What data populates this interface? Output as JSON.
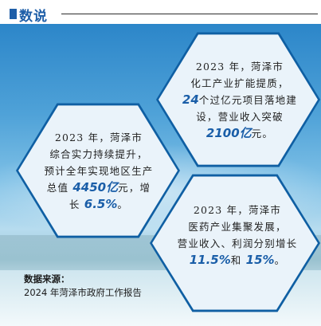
{
  "header": {
    "title": "数说"
  },
  "hexagons": {
    "top": {
      "line1": "2023 年，菏泽市",
      "line2": "化工产业扩能提质，",
      "line3_num": "24",
      "line3_rest": "个过亿元项目落地建",
      "line4": "设，营业收入突破",
      "line5_num": "2100亿",
      "line5_rest": "元。"
    },
    "left": {
      "line1": "2023 年，菏泽市",
      "line2": "综合实力持续提升，",
      "line3": "预计全年实现地区生产",
      "line4_pre": "总值 ",
      "line4_num": "4450亿",
      "line4_rest": "元，增",
      "line5_pre": "长 ",
      "line5_num": "6.5%",
      "line5_rest": "。"
    },
    "bottom": {
      "line1": "2023 年，菏泽市",
      "line2": "医药产业集聚发展，",
      "line3": "营业收入、利润分别增长",
      "line4_num1": "11.5%",
      "line4_mid": "和 ",
      "line4_num2": "15%",
      "line4_rest": "。"
    }
  },
  "source": {
    "label": "数据来源：",
    "text": "2024 年菏泽市政府工作报告"
  },
  "colors": {
    "accent": "#1f5fa8",
    "hex_border": "#0f5fa3",
    "hex_fill": "#eaf3fa"
  }
}
